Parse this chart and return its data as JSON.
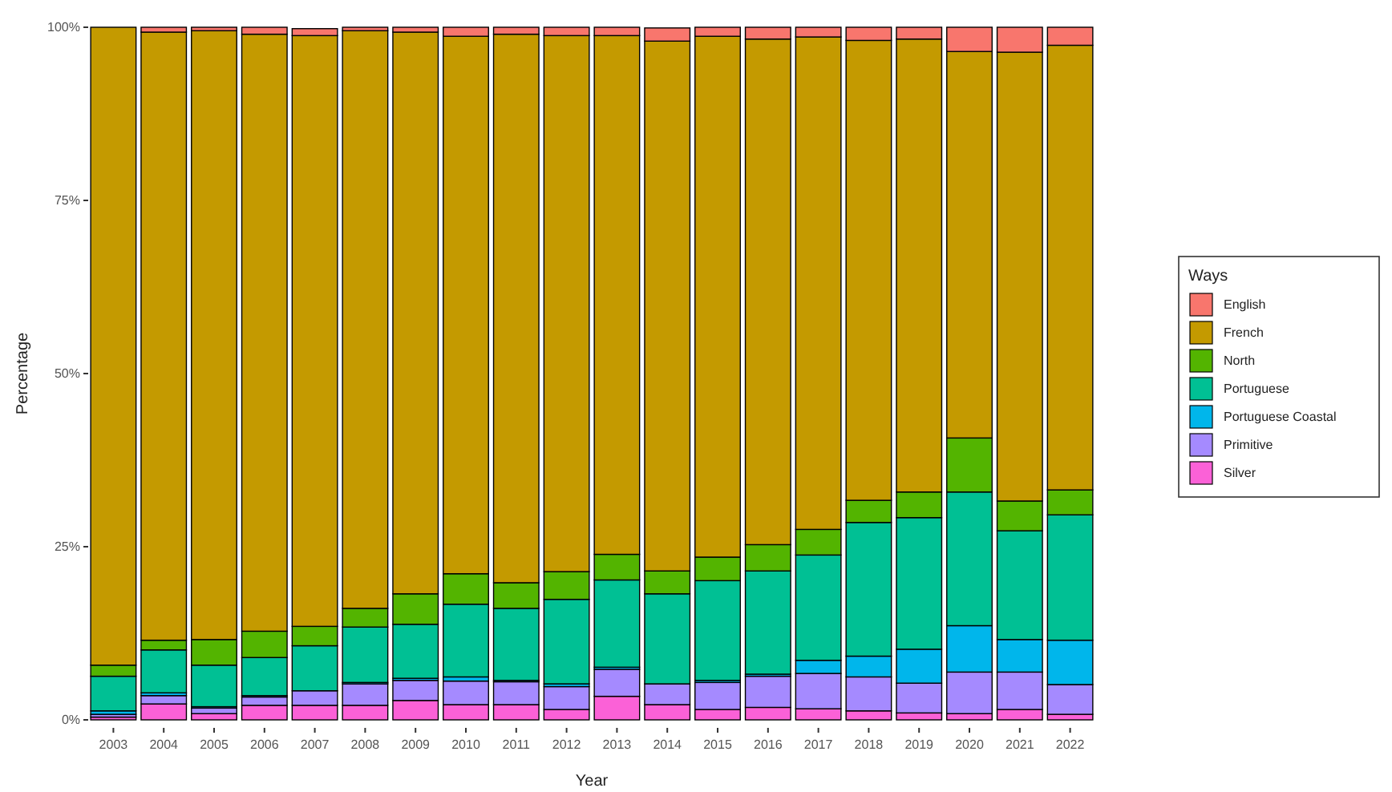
{
  "chart_data": {
    "type": "bar",
    "stacked": true,
    "xlabel": "Year",
    "ylabel": "Percentage",
    "legend_title": "Ways",
    "legend": "right",
    "grid": false,
    "categories": [
      "2003",
      "2004",
      "2005",
      "2006",
      "2007",
      "2008",
      "2009",
      "2010",
      "2011",
      "2012",
      "2013",
      "2014",
      "2015",
      "2016",
      "2017",
      "2018",
      "2019",
      "2020",
      "2021",
      "2022"
    ],
    "ylim": [
      0,
      100
    ],
    "yticks": [
      {
        "value": 0,
        "label": "0%"
      },
      {
        "value": 25,
        "label": "25%"
      },
      {
        "value": 50,
        "label": "50%"
      },
      {
        "value": 75,
        "label": "75%"
      },
      {
        "value": 100,
        "label": "100%"
      }
    ],
    "series": [
      {
        "name": "Silver",
        "color": "#fb61d7",
        "values": [
          0.4,
          2.3,
          0.9,
          2.1,
          2.1,
          2.1,
          2.8,
          2.2,
          2.2,
          1.5,
          3.4,
          2.2,
          1.5,
          1.8,
          1.6,
          1.3,
          1.0,
          0.9,
          1.5,
          0.8
        ]
      },
      {
        "name": "Primitive",
        "color": "#a58aff",
        "values": [
          0.4,
          1.2,
          0.8,
          1.2,
          2.1,
          3.1,
          2.9,
          3.4,
          3.3,
          3.3,
          3.9,
          3.0,
          3.9,
          4.5,
          5.1,
          4.9,
          4.3,
          6.0,
          5.4,
          4.3
        ]
      },
      {
        "name": "Portuguese Coastal",
        "color": "#00b6eb",
        "values": [
          0.5,
          0.4,
          0.2,
          0.2,
          null,
          0.2,
          0.3,
          0.6,
          0.2,
          0.4,
          0.3,
          null,
          0.3,
          0.3,
          1.9,
          3.0,
          4.9,
          6.7,
          4.7,
          6.4
        ]
      },
      {
        "name": "Portuguese",
        "color": "#00c094",
        "values": [
          5.0,
          6.2,
          6.0,
          5.5,
          6.5,
          8.0,
          7.8,
          10.5,
          10.4,
          12.2,
          12.6,
          13.0,
          14.4,
          14.9,
          15.2,
          19.3,
          19.0,
          19.3,
          15.7,
          18.1
        ]
      },
      {
        "name": "North",
        "color": "#53b400",
        "values": [
          1.6,
          1.4,
          3.7,
          3.8,
          2.8,
          2.7,
          4.4,
          4.4,
          3.7,
          4.0,
          3.7,
          3.3,
          3.4,
          3.8,
          3.7,
          3.2,
          3.7,
          7.8,
          4.3,
          3.6
        ]
      },
      {
        "name": "French",
        "color": "#c49a00",
        "values": [
          92.1,
          87.8,
          87.9,
          86.2,
          85.3,
          83.4,
          81.1,
          77.6,
          79.2,
          77.4,
          74.9,
          76.5,
          75.2,
          73.0,
          71.1,
          66.4,
          65.4,
          55.8,
          64.8,
          64.2
        ]
      },
      {
        "name": "English",
        "color": "#f8766d",
        "values": [
          0,
          0.7,
          0.5,
          1.0,
          1.0,
          0.5,
          0.7,
          1.3,
          1.0,
          1.2,
          1.2,
          1.9,
          1.3,
          1.7,
          1.4,
          1.9,
          1.7,
          3.5,
          3.6,
          2.6
        ]
      }
    ]
  }
}
